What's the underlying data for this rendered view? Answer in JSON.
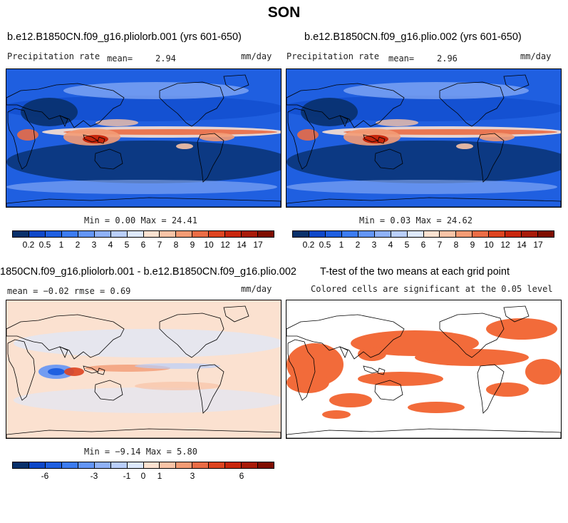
{
  "season": "SON",
  "panels": {
    "a": {
      "title": "b.e12.B1850CN.f09_g16.pliolorb.001 (yrs 601-650)",
      "left_label": "Precipitation rate",
      "mean_label": "mean=",
      "mean_value": "2.94",
      "units": "mm/day",
      "min_max": "Min =   0.00 Max =  24.41"
    },
    "b": {
      "title": "b.e12.B1850CN.f09_g16.plio.002 (yrs 601-650)",
      "left_label": "Precipitation rate",
      "mean_label": "mean=",
      "mean_value": "2.96",
      "units": "mm/day",
      "min_max": "Min =   0.03 Max =  24.62"
    },
    "c": {
      "title": "1850CN.f09_g16.pliolorb.001 - b.e12.B1850CN.f09_g16.plio.002",
      "stats": "mean =  −0.02    rmse =    0.69",
      "units": "mm/day",
      "min_max": "Min =  −9.14 Max =   5.80"
    },
    "d": {
      "title": "T-test of the two means at each grid point",
      "subtitle": "Colored cells are significant at the 0.05 level"
    }
  },
  "colorbars": {
    "precip": {
      "colors": [
        "#08306b",
        "#0d47c8",
        "#1f5fe0",
        "#3b7bf0",
        "#6395f5",
        "#8fb1f7",
        "#b9cefa",
        "#dde8fb",
        "#fbe1d0",
        "#f8c3a6",
        "#f39b74",
        "#ea6c45",
        "#dd4420",
        "#c8260c",
        "#a81a08",
        "#7f0d00"
      ],
      "labels": [
        "0.2",
        "0.5",
        "1",
        "2",
        "3",
        "4",
        "5",
        "6",
        "7",
        "8",
        "9",
        "10",
        "12",
        "14",
        "17"
      ]
    },
    "diff": {
      "colors": [
        "#08306b",
        "#0d47c8",
        "#1f5fe0",
        "#3b7bf0",
        "#6395f5",
        "#8fb1f7",
        "#b9cefa",
        "#dde8fb",
        "#fbe1d0",
        "#f8c3a6",
        "#f39b74",
        "#ea6c45",
        "#dd4420",
        "#c8260c",
        "#a81a08",
        "#7f0d00"
      ],
      "labels": [
        "-6",
        "-3",
        "-1",
        "0",
        "1",
        "3",
        "6"
      ],
      "label_boundary": [
        2,
        5,
        7,
        8,
        9,
        11,
        14
      ]
    }
  },
  "chart_data": [
    {
      "type": "heatmap",
      "title": "b.e12.B1850CN.f09_g16.pliolorb.001 (yrs 601-650)",
      "variable": "Precipitation rate",
      "units": "mm/day",
      "mean": 2.94,
      "min": 0.0,
      "max": 24.41
    },
    {
      "type": "heatmap",
      "title": "b.e12.B1850CN.f09_g16.plio.002 (yrs 601-650)",
      "variable": "Precipitation rate",
      "units": "mm/day",
      "mean": 2.96,
      "min": 0.03,
      "max": 24.62
    },
    {
      "type": "heatmap",
      "title": "1850CN.f09_g16.pliolorb.001 - b.e12.B1850CN.f09_g16.plio.002",
      "units": "mm/day",
      "mean": -0.02,
      "rmse": 0.69,
      "min": -9.14,
      "max": 5.8
    },
    {
      "type": "heatmap",
      "title": "T-test of the two means at each grid point",
      "subtitle": "Colored cells are significant at the 0.05 level"
    }
  ]
}
